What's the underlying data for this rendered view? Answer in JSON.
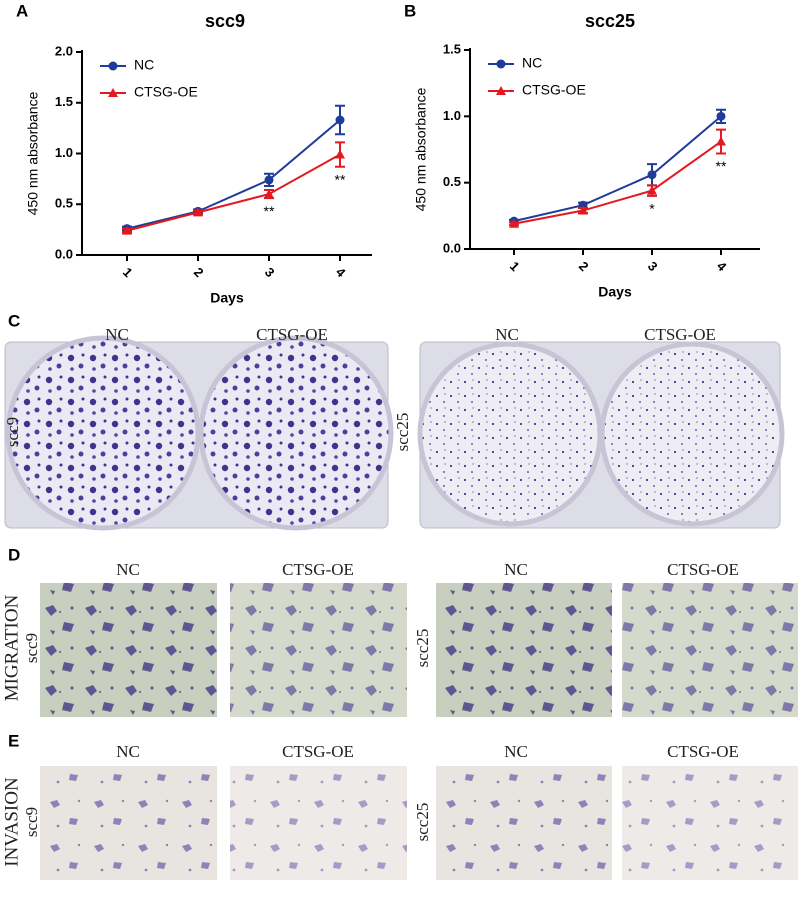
{
  "chart_data": [
    {
      "type": "line",
      "panel": "A",
      "title": "scc9",
      "xlabel": "Days",
      "ylabel": "450 nm absorbance",
      "categories": [
        "1",
        "2",
        "3",
        "4"
      ],
      "ylim": [
        0,
        2
      ],
      "yticks": [
        {
          "value": 0,
          "label": "0.0"
        },
        0.5,
        {
          "value": 1,
          "label": "1.0"
        },
        1.5,
        {
          "value": 2,
          "label": "2.0"
        }
      ],
      "series": [
        {
          "name": "NC",
          "color": "#1f3b9b",
          "marker": "circle",
          "values": [
            0.26,
            0.43,
            0.74,
            1.33
          ],
          "errors": [
            0.02,
            0.02,
            0.06,
            0.14
          ]
        },
        {
          "name": "CTSG-OE",
          "color": "#e3191f",
          "marker": "triangle",
          "values": [
            0.24,
            0.42,
            0.6,
            0.99
          ],
          "errors": [
            0.02,
            0.02,
            0.04,
            0.12
          ]
        }
      ],
      "significance": [
        null,
        null,
        "**",
        "**"
      ]
    },
    {
      "type": "line",
      "panel": "B",
      "title": "scc25",
      "xlabel": "Days",
      "ylabel": "450 nm absorbance",
      "categories": [
        "1",
        "2",
        "3",
        "4"
      ],
      "ylim": [
        0,
        1.5
      ],
      "yticks": [
        {
          "value": 0,
          "label": "0.0"
        },
        0.5,
        {
          "value": 1,
          "label": "1.0"
        },
        1.5
      ],
      "series": [
        {
          "name": "NC",
          "color": "#1f3b9b",
          "marker": "circle",
          "values": [
            0.21,
            0.33,
            0.56,
            1.0
          ],
          "errors": [
            0.01,
            0.02,
            0.08,
            0.05
          ]
        },
        {
          "name": "CTSG-OE",
          "color": "#e3191f",
          "marker": "triangle",
          "values": [
            0.19,
            0.29,
            0.44,
            0.81
          ],
          "errors": [
            0.01,
            0.02,
            0.04,
            0.09
          ]
        }
      ],
      "significance": [
        null,
        null,
        "*",
        "**"
      ]
    }
  ],
  "C": {
    "panel": "C",
    "columns": [
      "NC",
      "CTSG-OE",
      "NC",
      "CTSG-OE"
    ],
    "rows": [
      "scc9",
      "scc25"
    ]
  },
  "D": {
    "panel": "D",
    "label": "MIGRATION",
    "columns": [
      "NC",
      "CTSG-OE",
      "NC",
      "CTSG-OE"
    ],
    "rows": [
      "scc9",
      "scc25"
    ]
  },
  "E": {
    "panel": "E",
    "label": "INVASION",
    "columns": [
      "NC",
      "CTSG-OE",
      "NC",
      "CTSG-OE"
    ],
    "rows": [
      "scc9",
      "scc25"
    ]
  }
}
